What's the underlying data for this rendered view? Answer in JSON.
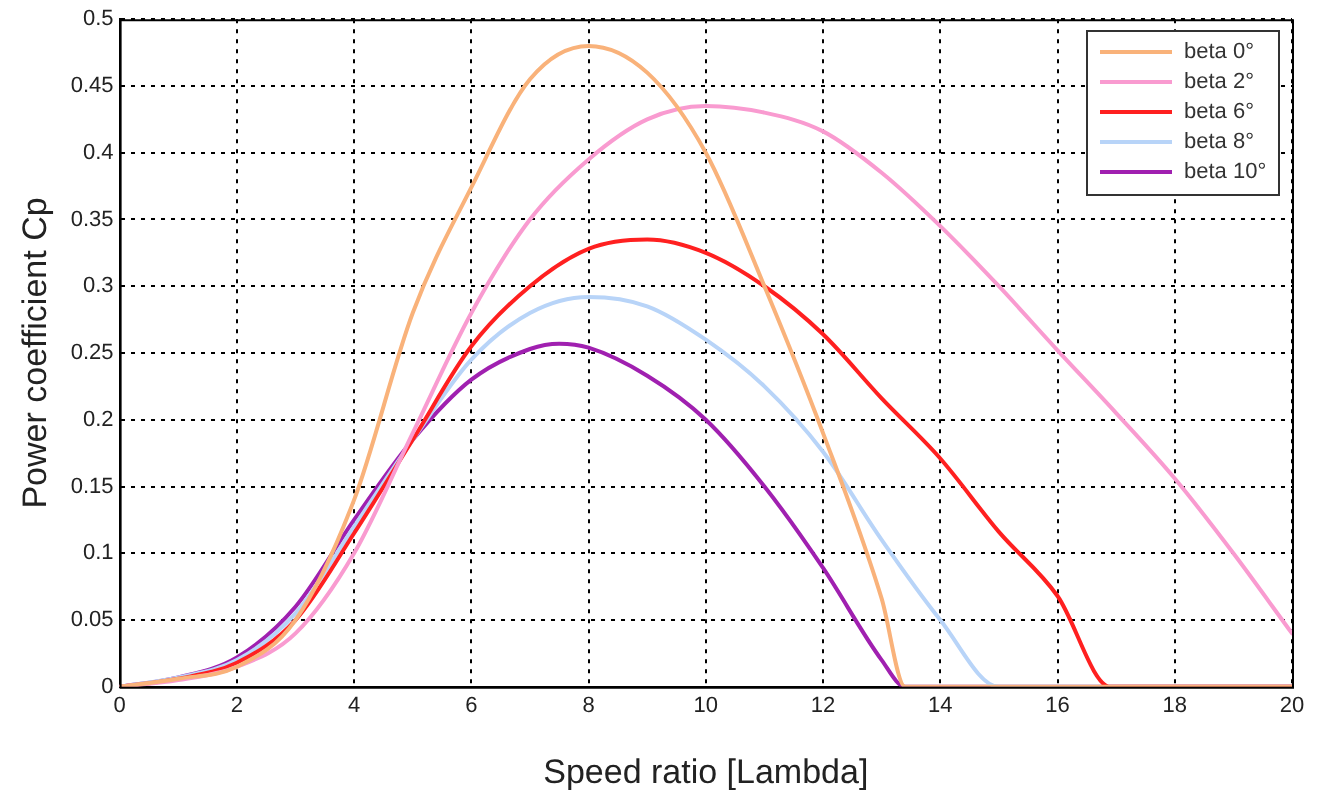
{
  "chart_data": {
    "type": "line",
    "xlabel": "Speed ratio [Lambda]",
    "ylabel": "Power coefficient Cp",
    "xlim": [
      0,
      20
    ],
    "xticks": [
      0,
      2,
      4,
      6,
      8,
      10,
      12,
      14,
      16,
      18,
      20
    ],
    "ylim": [
      0,
      0.5
    ],
    "yticks": [
      0,
      0.05,
      0.1,
      0.15,
      0.2,
      0.25,
      0.3,
      0.35,
      0.4,
      0.45,
      0.5
    ],
    "grid": true,
    "legend": "top right",
    "marker": "none",
    "line_style": "solid",
    "series": [
      {
        "name": "beta 0°",
        "color": "#f9b27a",
        "x": [
          0,
          1,
          2,
          3,
          4,
          5,
          6,
          7,
          8,
          9,
          10,
          11,
          12,
          13,
          13.4,
          20
        ],
        "values": [
          0,
          0.006,
          0.015,
          0.05,
          0.14,
          0.28,
          0.374,
          0.455,
          0.48,
          0.46,
          0.4,
          0.3,
          0.19,
          0.066,
          0,
          0
        ]
      },
      {
        "name": "beta 2°",
        "color": "#f99bd0",
        "x": [
          0,
          1,
          2,
          3,
          4,
          5,
          6,
          7,
          8,
          9,
          10,
          11,
          12,
          13,
          14,
          15,
          16,
          17,
          18,
          19,
          20
        ],
        "values": [
          0,
          0.005,
          0.015,
          0.04,
          0.1,
          0.19,
          0.28,
          0.35,
          0.395,
          0.425,
          0.435,
          0.43,
          0.416,
          0.385,
          0.345,
          0.3,
          0.252,
          0.205,
          0.156,
          0.1,
          0.04
        ]
      },
      {
        "name": "beta 6°",
        "color": "#ff2020",
        "x": [
          0,
          1,
          2,
          3,
          4,
          5,
          6,
          7,
          8,
          9,
          10,
          11,
          12,
          13,
          14,
          15,
          16,
          16.9,
          20
        ],
        "values": [
          0,
          0.006,
          0.018,
          0.05,
          0.115,
          0.185,
          0.255,
          0.3,
          0.328,
          0.335,
          0.325,
          0.3,
          0.264,
          0.216,
          0.171,
          0.116,
          0.068,
          0,
          0
        ]
      },
      {
        "name": "beta 8°",
        "color": "#b8d4f8",
        "x": [
          0,
          1,
          2,
          3,
          4,
          5,
          6,
          7,
          8,
          9,
          10,
          11,
          12,
          13,
          14,
          15,
          20
        ],
        "values": [
          0,
          0.007,
          0.02,
          0.055,
          0.12,
          0.185,
          0.245,
          0.28,
          0.292,
          0.285,
          0.26,
          0.225,
          0.176,
          0.11,
          0.05,
          0,
          0
        ]
      },
      {
        "name": "beta 10°",
        "color": "#a020b0",
        "x": [
          0,
          1,
          2,
          3,
          4,
          5,
          6,
          7,
          7.5,
          8,
          9,
          10,
          11,
          12,
          13,
          13.4,
          20
        ],
        "values": [
          0,
          0.007,
          0.022,
          0.06,
          0.125,
          0.185,
          0.23,
          0.253,
          0.257,
          0.254,
          0.233,
          0.2,
          0.15,
          0.089,
          0.02,
          0,
          0
        ]
      }
    ]
  }
}
